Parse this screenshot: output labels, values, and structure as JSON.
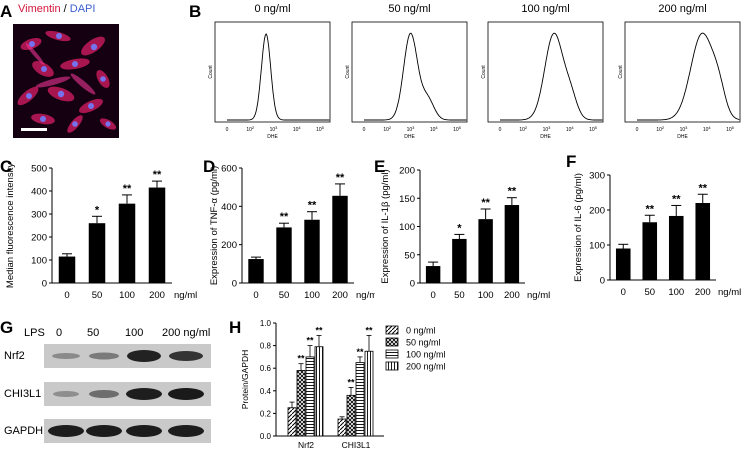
{
  "panel_letters": [
    "A",
    "B",
    "C",
    "D",
    "E",
    "F",
    "G",
    "H"
  ],
  "panel_a": {
    "title_marker": "Vimentin",
    "title_separator": " / ",
    "title_dapi": "DAPI",
    "marker_color": "#d4143a",
    "dapi_color": "#3a5fd0"
  },
  "panel_b": {
    "titles": [
      "0 ng/ml",
      "50 ng/ml",
      "100 ng/ml",
      "200 ng/ml"
    ],
    "ylabel": "Count",
    "xlabel": "DHE",
    "ticks": [
      "0",
      "10",
      "10",
      "10",
      "10"
    ],
    "tick_exps": [
      "",
      "2",
      "3",
      "4",
      "5"
    ]
  },
  "bar_common": {
    "categories": [
      "0",
      "50",
      "100",
      "200"
    ],
    "unit": "ng/ml"
  },
  "panel_g": {
    "header_label": "LPS",
    "lanes": [
      "0",
      "50",
      "100",
      "200 ng/ml"
    ],
    "rows": [
      "Nrf2",
      "CHI3L1",
      "GAPDH"
    ]
  },
  "chart_data": [
    {
      "type": "histogram",
      "panel": "B",
      "titles": [
        "0 ng/ml",
        "50 ng/ml",
        "100 ng/ml",
        "200 ng/ml"
      ],
      "xlabel": "DHE",
      "ylabel": "Count",
      "x_scale": "log",
      "peak_log10_dhe": [
        1.6,
        2.0,
        2.4,
        3.0
      ]
    },
    {
      "type": "bar",
      "panel": "C",
      "categories": [
        "0",
        "50",
        "100",
        "200"
      ],
      "values": [
        115,
        260,
        345,
        415
      ],
      "errors": [
        12,
        30,
        38,
        28
      ],
      "sig": [
        "",
        "*",
        "**",
        "**"
      ],
      "ylabel": "Median fluorescence intensity",
      "xlabel": "ng/ml",
      "ylim": [
        0,
        500
      ],
      "yticks": [
        0,
        100,
        200,
        300,
        400,
        500
      ]
    },
    {
      "type": "bar",
      "panel": "D",
      "categories": [
        "0",
        "50",
        "100",
        "200"
      ],
      "values": [
        125,
        290,
        330,
        455
      ],
      "errors": [
        10,
        22,
        42,
        62
      ],
      "sig": [
        "",
        "**",
        "**",
        "**"
      ],
      "ylabel": "Expression of TNF-α  (pg/ml)",
      "xlabel": "ng/ml",
      "ylim": [
        0,
        600
      ],
      "yticks": [
        0,
        200,
        400,
        600
      ]
    },
    {
      "type": "bar",
      "panel": "E",
      "categories": [
        "0",
        "50",
        "100",
        "200"
      ],
      "values": [
        30,
        78,
        113,
        138
      ],
      "errors": [
        7,
        8,
        18,
        13
      ],
      "sig": [
        "",
        "*",
        "**",
        "**"
      ],
      "ylabel": "Expression of IL-1β  (pg/ml)",
      "xlabel": "ng/ml",
      "ylim": [
        0,
        200
      ],
      "yticks": [
        0,
        50,
        100,
        150,
        200
      ]
    },
    {
      "type": "bar",
      "panel": "F",
      "categories": [
        "0",
        "50",
        "100",
        "200"
      ],
      "values": [
        90,
        165,
        183,
        220
      ],
      "errors": [
        12,
        20,
        30,
        25
      ],
      "sig": [
        "",
        "**",
        "**",
        "**"
      ],
      "ylabel": "Expression of IL-6 (pg/ml)",
      "xlabel": "ng/ml",
      "ylim": [
        0,
        300
      ],
      "yticks": [
        0,
        100,
        200,
        300
      ]
    },
    {
      "type": "bar",
      "panel": "H",
      "categories": [
        "Nrf2",
        "CHI3L1"
      ],
      "series": [
        {
          "name": "0 ng/ml",
          "values": [
            0.25,
            0.15
          ],
          "errors": [
            0.05,
            0.02
          ],
          "sig": [
            "",
            ""
          ]
        },
        {
          "name": "50 ng/ml",
          "values": [
            0.58,
            0.36
          ],
          "errors": [
            0.06,
            0.07
          ],
          "sig": [
            "**",
            "**"
          ]
        },
        {
          "name": "100 ng/ml",
          "values": [
            0.7,
            0.65
          ],
          "errors": [
            0.1,
            0.05
          ],
          "sig": [
            "**",
            "**"
          ]
        },
        {
          "name": "200 ng/ml",
          "values": [
            0.79,
            0.75
          ],
          "errors": [
            0.1,
            0.14
          ],
          "sig": [
            "**",
            "**"
          ]
        }
      ],
      "ylabel": "Protein/GAPDH",
      "ylim": [
        0,
        1.0
      ],
      "yticks": [
        0.0,
        0.2,
        0.4,
        0.6,
        0.8,
        1.0
      ],
      "ytick_labels": [
        "0.0",
        "0.2",
        "0.4",
        "0.6",
        "0.8",
        "1.0"
      ],
      "legend_position": "top-right"
    }
  ]
}
